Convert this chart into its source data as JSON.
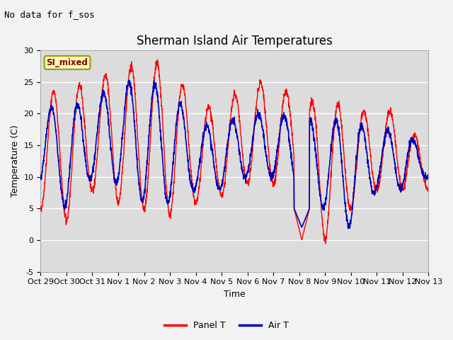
{
  "title": "Sherman Island Air Temperatures",
  "xlabel": "Time",
  "ylabel": "Temperature (C)",
  "no_data_text": "No data for f_sos",
  "legend_label_text": "SI_mixed",
  "legend_series": [
    "Panel T",
    "Air T"
  ],
  "panel_color": "#ff0000",
  "air_color": "#0000bb",
  "ylim": [
    -5,
    30
  ],
  "yticks": [
    -5,
    0,
    5,
    10,
    15,
    20,
    25,
    30
  ],
  "x_tick_labels": [
    "Oct 29",
    "Oct 30",
    "Oct 31",
    "Nov 1",
    "Nov 2",
    "Nov 3",
    "Nov 4",
    "Nov 5",
    "Nov 6",
    "Nov 7",
    "Nov 8",
    "Nov 9",
    "Nov 10",
    "Nov 11",
    "Nov 12",
    "Nov 13"
  ],
  "background_color": "#dcdcdc",
  "grid_color": "#ffffff",
  "fig_bg": "#f2f2f2",
  "title_fontsize": 12,
  "label_fontsize": 9,
  "tick_fontsize": 8,
  "no_data_fontsize": 9
}
